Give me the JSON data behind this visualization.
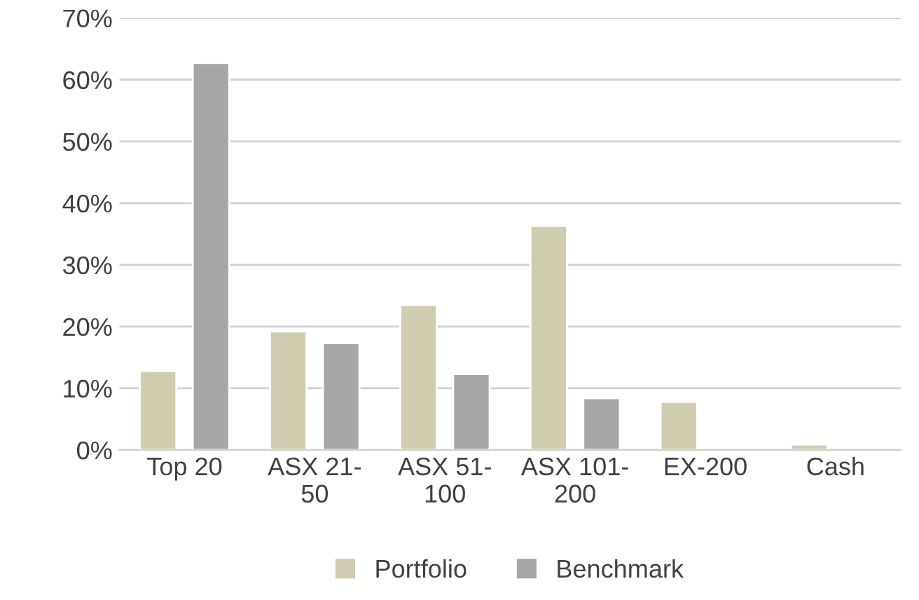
{
  "chart_data": {
    "type": "bar",
    "categories": [
      "Top 20",
      "ASX 21-50",
      "ASX 51-100",
      "ASX 101-200",
      "EX-200",
      "Cash"
    ],
    "series": [
      {
        "name": "Portfolio",
        "color": "#cfccb0",
        "values": [
          12.8,
          19.2,
          23.5,
          36.3,
          7.8,
          0.9
        ]
      },
      {
        "name": "Benchmark",
        "color": "#a6a6a6",
        "values": [
          62.7,
          17.3,
          12.3,
          8.4,
          null,
          null
        ]
      }
    ],
    "ylim": [
      0,
      70
    ],
    "yticks": [
      {
        "value": 0,
        "label": "0%"
      },
      {
        "value": 10,
        "label": "10%"
      },
      {
        "value": 20,
        "label": "20%"
      },
      {
        "value": 30,
        "label": "30%"
      },
      {
        "value": 40,
        "label": "40%"
      },
      {
        "value": 50,
        "label": "50%"
      },
      {
        "value": 60,
        "label": "60%"
      },
      {
        "value": 70,
        "label": "70%"
      }
    ],
    "grid": "y",
    "legend": "bottom"
  }
}
